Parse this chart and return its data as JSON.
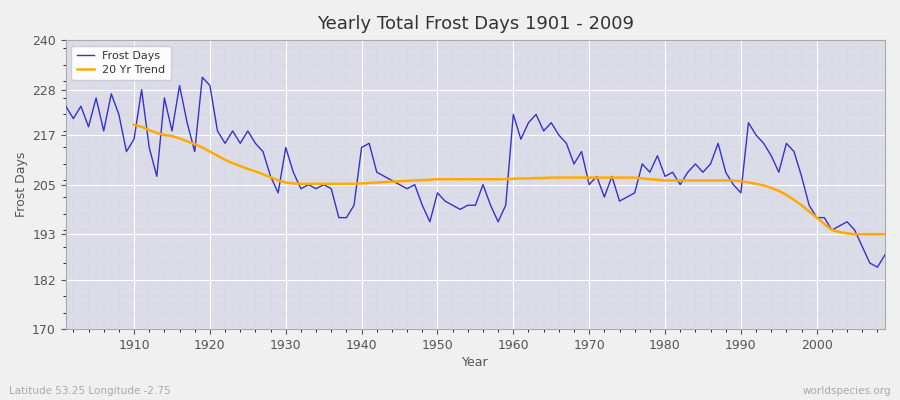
{
  "title": "Yearly Total Frost Days 1901 - 2009",
  "xlabel": "Year",
  "ylabel": "Frost Days",
  "lat_lon_label": "Latitude 53.25 Longitude -2.75",
  "watermark": "worldspecies.org",
  "line_color": "#3333cc",
  "trend_color": "#ffaa00",
  "plot_bg_color": "#dcdce8",
  "fig_bg_color": "#f0f0f0",
  "ylim": [
    170,
    240
  ],
  "yticks": [
    170,
    182,
    193,
    205,
    217,
    228,
    240
  ],
  "xlim_start": 1901,
  "xlim_end": 2009,
  "years": [
    1901,
    1902,
    1903,
    1904,
    1905,
    1906,
    1907,
    1908,
    1909,
    1910,
    1911,
    1912,
    1913,
    1914,
    1915,
    1916,
    1917,
    1918,
    1919,
    1920,
    1921,
    1922,
    1923,
    1924,
    1925,
    1926,
    1927,
    1928,
    1929,
    1930,
    1931,
    1932,
    1933,
    1934,
    1935,
    1936,
    1937,
    1938,
    1939,
    1940,
    1941,
    1942,
    1943,
    1944,
    1945,
    1946,
    1947,
    1948,
    1949,
    1950,
    1951,
    1952,
    1953,
    1954,
    1955,
    1956,
    1957,
    1958,
    1959,
    1960,
    1961,
    1962,
    1963,
    1964,
    1965,
    1966,
    1967,
    1968,
    1969,
    1970,
    1971,
    1972,
    1973,
    1974,
    1975,
    1976,
    1977,
    1978,
    1979,
    1980,
    1981,
    1982,
    1983,
    1984,
    1985,
    1986,
    1987,
    1988,
    1989,
    1990,
    1991,
    1992,
    1993,
    1994,
    1995,
    1996,
    1997,
    1998,
    1999,
    2000,
    2001,
    2002,
    2003,
    2004,
    2005,
    2006,
    2007,
    2008,
    2009
  ],
  "frost_days": [
    224,
    221,
    224,
    219,
    226,
    218,
    227,
    222,
    213,
    216,
    228,
    214,
    207,
    226,
    218,
    229,
    220,
    213,
    231,
    229,
    218,
    215,
    218,
    215,
    218,
    215,
    213,
    207,
    203,
    214,
    208,
    204,
    205,
    204,
    205,
    204,
    197,
    197,
    200,
    214,
    215,
    208,
    207,
    206,
    205,
    204,
    205,
    200,
    196,
    203,
    201,
    200,
    199,
    200,
    200,
    205,
    200,
    196,
    200,
    222,
    216,
    220,
    222,
    218,
    220,
    217,
    215,
    210,
    213,
    205,
    207,
    202,
    207,
    201,
    202,
    203,
    210,
    208,
    212,
    207,
    208,
    205,
    208,
    210,
    208,
    210,
    215,
    208,
    205,
    203,
    220,
    217,
    215,
    212,
    208,
    215,
    213,
    207,
    200,
    197,
    197,
    194,
    195,
    196,
    194,
    190,
    186,
    185,
    188
  ],
  "trend_years": [
    1910,
    1911,
    1912,
    1913,
    1914,
    1915,
    1916,
    1917,
    1918,
    1919,
    1920,
    1921,
    1922,
    1923,
    1924,
    1925,
    1926,
    1927,
    1928,
    1929,
    1930,
    1931,
    1932,
    1933,
    1934,
    1935,
    1936,
    1937,
    1938,
    1939,
    1940,
    1941,
    1942,
    1943,
    1944,
    1945,
    1946,
    1947,
    1948,
    1949,
    1950,
    1951,
    1952,
    1953,
    1954,
    1955,
    1956,
    1957,
    1958,
    1959,
    1960,
    1961,
    1962,
    1963,
    1964,
    1965,
    1966,
    1967,
    1968,
    1969,
    1970,
    1971,
    1972,
    1973,
    1974,
    1975,
    1976,
    1977,
    1978,
    1979,
    1980,
    1981,
    1982,
    1983,
    1984,
    1985,
    1986,
    1987,
    1988,
    1989,
    1990,
    1991,
    1992,
    1993,
    1994,
    1995,
    1996,
    1997,
    1998,
    1999,
    2000,
    2001,
    2002,
    2003,
    2004,
    2005,
    2006,
    2007,
    2008,
    2009
  ],
  "trend_values": [
    219.5,
    219.0,
    218.2,
    217.5,
    217.0,
    216.8,
    216.2,
    215.5,
    214.8,
    214.0,
    213.0,
    212.0,
    211.0,
    210.2,
    209.5,
    208.8,
    208.2,
    207.5,
    206.8,
    206.0,
    205.5,
    205.3,
    205.2,
    205.2,
    205.2,
    205.2,
    205.2,
    205.2,
    205.2,
    205.2,
    205.3,
    205.4,
    205.5,
    205.6,
    205.7,
    205.8,
    205.9,
    206.0,
    206.1,
    206.2,
    206.3,
    206.3,
    206.3,
    206.3,
    206.3,
    206.3,
    206.3,
    206.3,
    206.3,
    206.3,
    206.4,
    206.5,
    206.5,
    206.6,
    206.6,
    206.7,
    206.7,
    206.7,
    206.7,
    206.7,
    206.7,
    206.7,
    206.7,
    206.7,
    206.7,
    206.7,
    206.7,
    206.5,
    206.3,
    206.2,
    206.0,
    206.0,
    206.0,
    206.0,
    206.0,
    206.0,
    206.0,
    206.0,
    206.0,
    206.0,
    205.8,
    205.5,
    205.2,
    204.8,
    204.2,
    203.5,
    202.5,
    201.3,
    200.0,
    198.5,
    197.0,
    195.5,
    194.0,
    193.5,
    193.2,
    193.0,
    193.0,
    193.0,
    193.0,
    193.0
  ]
}
